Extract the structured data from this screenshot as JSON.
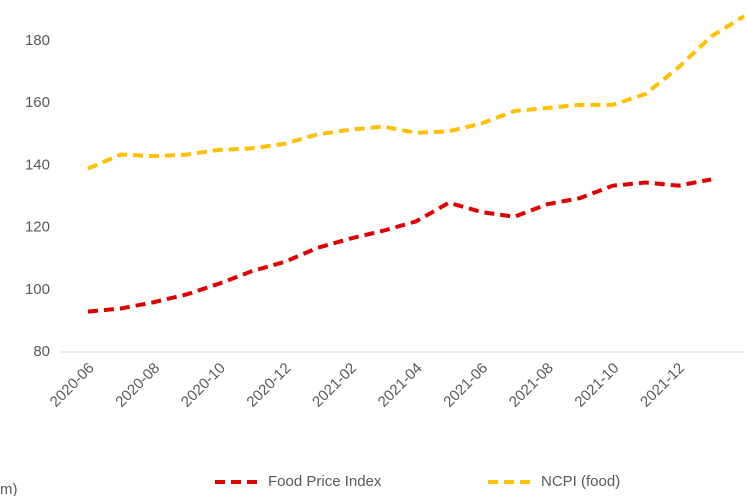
{
  "chart_data": {
    "type": "line",
    "categories": [
      "2020-06",
      null,
      "2020-08",
      null,
      "2020-10",
      null,
      "2020-12",
      null,
      "2021-02",
      null,
      "2021-04",
      null,
      "2021-06",
      null,
      "2021-08",
      null,
      "2021-10",
      null,
      "2021-12",
      null,
      null
    ],
    "series": [
      {
        "name": "Food Price Index",
        "color": "#e00000",
        "values": [
          93,
          94,
          96,
          98.5,
          102,
          106,
          109,
          113.5,
          116.5,
          119,
          122,
          128,
          125,
          123.5,
          127.5,
          129.5,
          133.5,
          134.5,
          133.5,
          135.5,
          null
        ]
      },
      {
        "name": "NCPI (food)",
        "color": "#ffc000",
        "values": [
          139,
          143.5,
          143,
          143.5,
          145,
          145.5,
          147,
          150,
          151.5,
          152.5,
          150.5,
          151,
          153.5,
          157.5,
          158.5,
          159.5,
          159.5,
          163,
          171.5,
          181.5,
          188
        ]
      }
    ],
    "ylim": [
      80,
      190
    ],
    "yticks": [
      80,
      100,
      120,
      140,
      160,
      180
    ],
    "legend": "bottom",
    "note": "m)"
  }
}
